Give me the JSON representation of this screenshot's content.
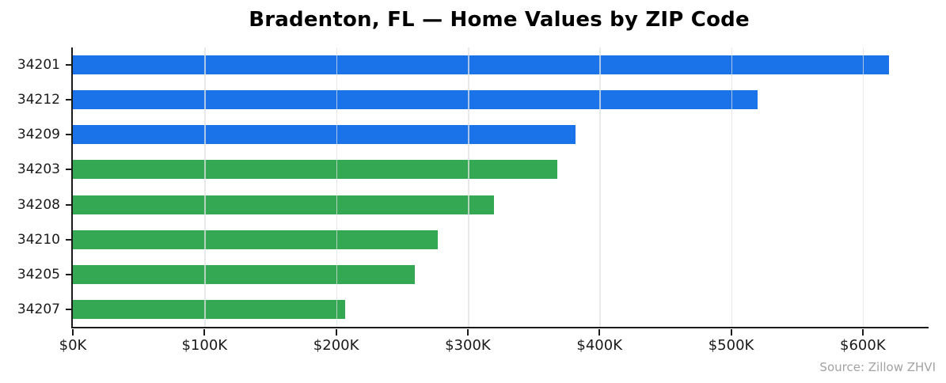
{
  "title": "Bradenton, FL — Home Values by ZIP Code",
  "source": "Source: Zillow ZHVI",
  "chart_data": {
    "type": "bar",
    "orientation": "horizontal",
    "title": "Bradenton, FL — Home Values by ZIP Code",
    "categories": [
      "34201",
      "34212",
      "34209",
      "34203",
      "34208",
      "34210",
      "34205",
      "34207"
    ],
    "values_k": [
      620,
      520,
      382,
      368,
      320,
      277,
      260,
      207
    ],
    "bar_colors": [
      "#1a73e8",
      "#1a73e8",
      "#1a73e8",
      "#34a853",
      "#34a853",
      "#34a853",
      "#34a853",
      "#34a853"
    ],
    "x_tick_labels": [
      "$0K",
      "$100K",
      "$200K",
      "$300K",
      "$400K",
      "$500K",
      "$600K"
    ],
    "x_tick_values": [
      0,
      100,
      200,
      300,
      400,
      500,
      600
    ],
    "xlim": [
      0,
      650
    ],
    "grid": "vertical",
    "legend": "none",
    "annotation": "Source: Zillow ZHVI",
    "colors": {
      "blue_bars": "#1a73e8",
      "green_bars": "#34a853",
      "gridline": "#e1e1e1",
      "axis": "#1a1a1a",
      "source_text": "#a3a3a3"
    }
  }
}
